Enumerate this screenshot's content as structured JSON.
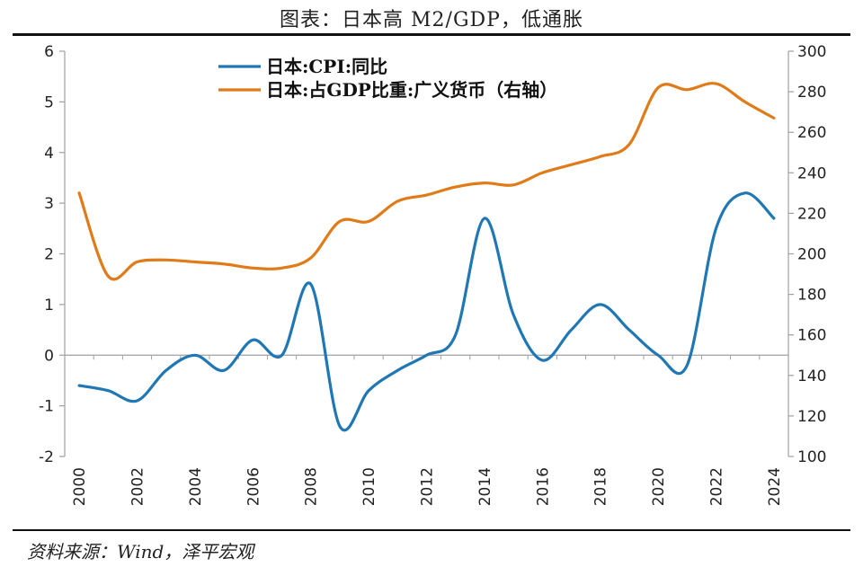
{
  "title": "图表：日本高 M2/GDP，低通胀",
  "source": "资料来源：Wind，泽平宏观",
  "chart_data": {
    "type": "line",
    "title": "图表：日本高 M2/GDP，低通胀",
    "legend_position": "top-center",
    "grid": false,
    "x_ticks": [
      "2000",
      "2002",
      "2004",
      "2006",
      "2008",
      "2010",
      "2012",
      "2014",
      "2016",
      "2018",
      "2020",
      "2022",
      "2024"
    ],
    "x_range": [
      1999.5,
      2024.5
    ],
    "y_left": {
      "range": [
        -2,
        6
      ],
      "ticks": [
        "-2",
        "-1",
        "0",
        "1",
        "2",
        "3",
        "4",
        "5",
        "6"
      ]
    },
    "y_right": {
      "range": [
        100,
        300
      ],
      "ticks": [
        "100",
        "120",
        "140",
        "160",
        "180",
        "200",
        "220",
        "240",
        "260",
        "280",
        "300"
      ]
    },
    "series": [
      {
        "name": "日本:CPI:同比",
        "axis": "left",
        "color": "#1f77b4",
        "x": [
          2000,
          2001,
          2002,
          2003,
          2004,
          2005,
          2006,
          2007,
          2008,
          2009,
          2010,
          2011,
          2012,
          2013,
          2014,
          2015,
          2016,
          2017,
          2018,
          2019,
          2020,
          2021,
          2022,
          2023,
          2024
        ],
        "values": [
          -0.6,
          -0.7,
          -0.9,
          -0.3,
          0.0,
          -0.3,
          0.3,
          0.0,
          1.4,
          -1.4,
          -0.7,
          -0.3,
          0.0,
          0.4,
          2.7,
          0.8,
          -0.1,
          0.5,
          1.0,
          0.5,
          0.0,
          -0.2,
          2.5,
          3.2,
          2.7
        ]
      },
      {
        "name": "日本:占GDP比重:广义货币（右轴）",
        "axis": "right",
        "color": "#e07b1a",
        "x": [
          2000,
          2001,
          2002,
          2003,
          2004,
          2005,
          2006,
          2007,
          2008,
          2009,
          2010,
          2011,
          2012,
          2013,
          2014,
          2015,
          2016,
          2017,
          2018,
          2019,
          2020,
          2021,
          2022,
          2023,
          2024
        ],
        "values": [
          230,
          189,
          196,
          197,
          196,
          195,
          193,
          193,
          198,
          216,
          216,
          226,
          229,
          233,
          235,
          234,
          240,
          244,
          248,
          254,
          282,
          281,
          284,
          275,
          267
        ]
      }
    ]
  }
}
